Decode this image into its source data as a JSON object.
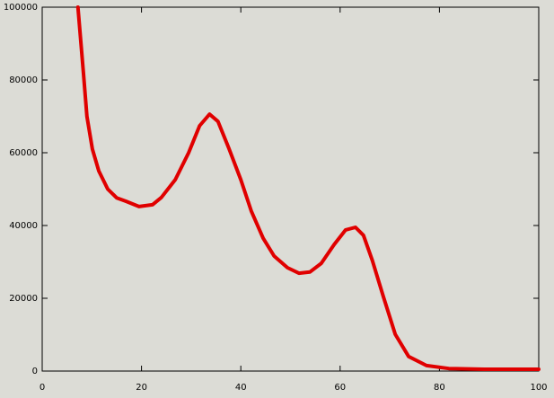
{
  "chart_data": {
    "type": "line",
    "x": [
      7.2,
      8.3,
      9,
      10.1,
      11.4,
      13.2,
      15,
      16.8,
      19.5,
      22.2,
      24,
      26.8,
      29.5,
      31.7,
      33.7,
      35.4,
      37.6,
      40,
      42.1,
      44.5,
      46.7,
      49.4,
      51.7,
      53.9,
      56.2,
      58.8,
      61.1,
      63.1,
      64.7,
      66.5,
      68.7,
      71.1,
      73.8,
      77.4,
      81.9,
      89,
      100
    ],
    "series": [
      {
        "color": "#e00000",
        "values": [
          100000,
          82000,
          70000,
          61000,
          55000,
          50000,
          47600,
          46700,
          45200,
          45700,
          47700,
          52600,
          60000,
          67400,
          70600,
          68600,
          61200,
          52600,
          44000,
          36500,
          31600,
          28400,
          26900,
          27200,
          29600,
          34800,
          38800,
          39500,
          37300,
          30400,
          20500,
          10100,
          4000,
          1500,
          700,
          500,
          500
        ]
      }
    ],
    "xlim": [
      0,
      100
    ],
    "xticks": [
      0,
      20,
      40,
      60,
      80,
      100
    ],
    "ylim": [
      0,
      100000
    ],
    "yticks": [
      0,
      20000,
      40000,
      60000,
      80000,
      100000
    ]
  }
}
